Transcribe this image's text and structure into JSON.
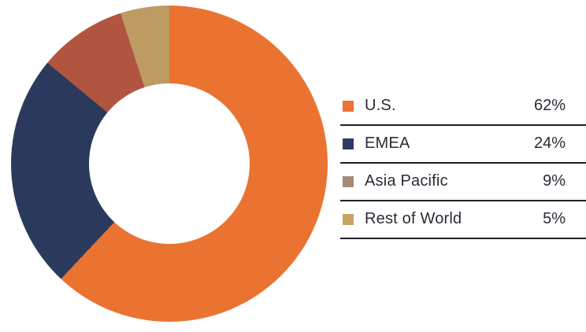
{
  "chart_data": {
    "type": "pie",
    "subtype": "donut",
    "direction": "clockwise",
    "start_angle_deg": 0,
    "inner_radius_ratio": 0.5,
    "legend_position": "right",
    "series": [
      {
        "label": "U.S.",
        "value": 62,
        "pct": "62%",
        "color": "#EB7331",
        "legend_color": "#EE7032"
      },
      {
        "label": "EMEA",
        "value": 24,
        "pct": "24%",
        "color": "#2B3A5C",
        "legend_color": "#2B3C63"
      },
      {
        "label": "Asia Pacific",
        "value": 9,
        "pct": "9%",
        "color": "#B15440",
        "legend_color": "#A78A74"
      },
      {
        "label": "Rest of World",
        "value": 5,
        "pct": "5%",
        "color": "#BD9B63",
        "legend_color": "#C7A661"
      }
    ],
    "colors": {
      "text": "#2b2b36",
      "divider": "#1f1f27",
      "background": "#ffffff"
    }
  }
}
